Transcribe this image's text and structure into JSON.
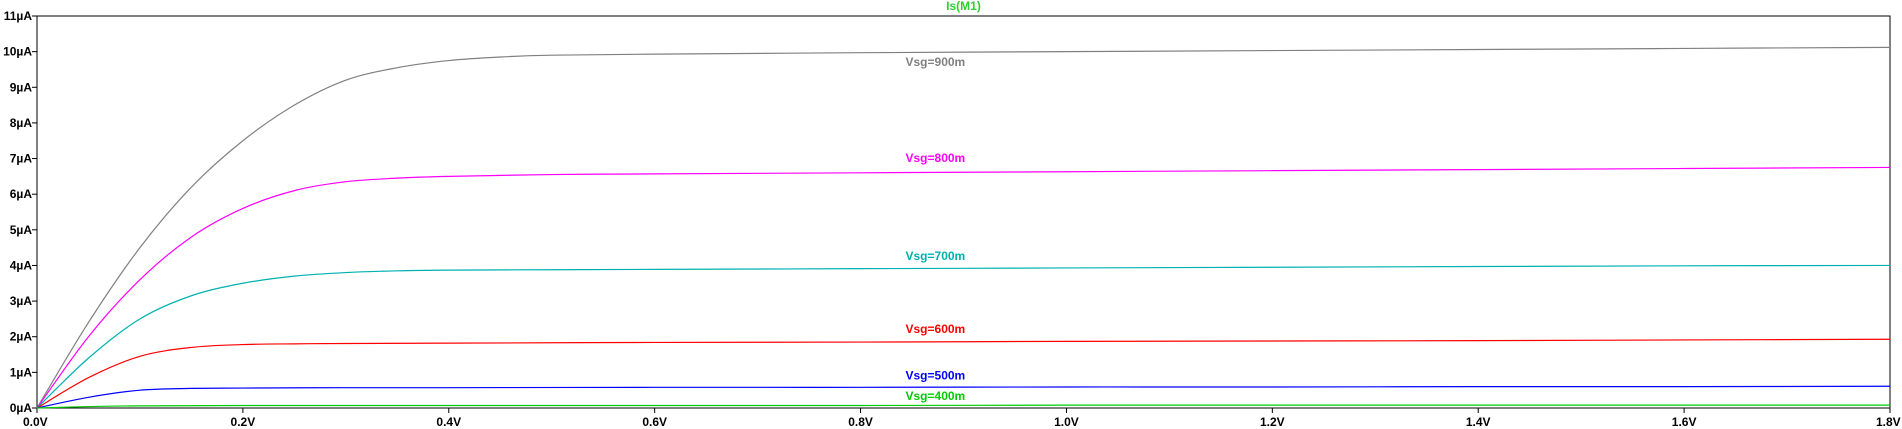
{
  "chart_data": {
    "type": "line",
    "title": "Is(M1)",
    "title_color": "#32cd32",
    "xlabel": "",
    "ylabel": "",
    "xlim": [
      0,
      1.8
    ],
    "ylim": [
      0,
      11
    ],
    "x_unit": "V",
    "y_unit": "µA",
    "grid": false,
    "x_ticks": [
      0,
      0.2,
      0.4,
      0.6,
      0.8,
      1.0,
      1.2,
      1.4,
      1.6,
      1.8
    ],
    "x_tick_labels": [
      "0.0V",
      "0.2V",
      "0.4V",
      "0.6V",
      "0.8V",
      "1.0V",
      "1.2V",
      "1.4V",
      "1.6V",
      "1.8V"
    ],
    "y_ticks": [
      0,
      1,
      2,
      3,
      4,
      5,
      6,
      7,
      8,
      9,
      10,
      11
    ],
    "y_tick_labels": [
      "0µA",
      "1µA",
      "2µA",
      "3µA",
      "4µA",
      "5µA",
      "6µA",
      "7µA",
      "8µA",
      "9µA",
      "10µA",
      "11µA"
    ],
    "series": [
      {
        "name": "Vsg=900m",
        "color": "#808080",
        "x": [
          0,
          0.05,
          0.1,
          0.15,
          0.2,
          0.25,
          0.3,
          0.35,
          0.4,
          0.45,
          0.5,
          0.6,
          0.8,
          1.0,
          1.2,
          1.4,
          1.6,
          1.8
        ],
        "values": [
          0,
          2.4,
          4.5,
          6.2,
          7.5,
          8.5,
          9.2,
          9.55,
          9.75,
          9.85,
          9.9,
          9.93,
          9.97,
          10.0,
          10.03,
          10.06,
          10.09,
          10.12
        ],
        "label_x": 0.9,
        "label_y": 9.6
      },
      {
        "name": "Vsg=800m",
        "color": "#ff00ff",
        "x": [
          0,
          0.05,
          0.1,
          0.15,
          0.2,
          0.25,
          0.3,
          0.35,
          0.4,
          0.5,
          0.6,
          0.8,
          1.0,
          1.2,
          1.4,
          1.6,
          1.8
        ],
        "values": [
          0,
          2.0,
          3.6,
          4.8,
          5.6,
          6.1,
          6.35,
          6.45,
          6.5,
          6.55,
          6.57,
          6.6,
          6.63,
          6.66,
          6.69,
          6.72,
          6.75
        ],
        "label_x": 0.9,
        "label_y": 6.9
      },
      {
        "name": "Vsg=700m",
        "color": "#00b0b0",
        "x": [
          0,
          0.05,
          0.1,
          0.15,
          0.2,
          0.25,
          0.3,
          0.35,
          0.4,
          0.5,
          0.6,
          0.8,
          1.0,
          1.2,
          1.4,
          1.6,
          1.8
        ],
        "values": [
          0,
          1.4,
          2.5,
          3.15,
          3.5,
          3.7,
          3.8,
          3.85,
          3.87,
          3.88,
          3.89,
          3.91,
          3.93,
          3.95,
          3.97,
          3.99,
          4.0
        ],
        "label_x": 0.9,
        "label_y": 4.15
      },
      {
        "name": "Vsg=600m",
        "color": "#ff0000",
        "x": [
          0,
          0.05,
          0.1,
          0.15,
          0.2,
          0.25,
          0.3,
          0.4,
          0.6,
          0.8,
          1.0,
          1.2,
          1.4,
          1.6,
          1.8
        ],
        "values": [
          0,
          0.85,
          1.45,
          1.7,
          1.78,
          1.8,
          1.81,
          1.82,
          1.84,
          1.85,
          1.87,
          1.88,
          1.89,
          1.91,
          1.93
        ],
        "label_x": 0.9,
        "label_y": 2.1
      },
      {
        "name": "Vsg=500m",
        "color": "#0000ff",
        "x": [
          0,
          0.05,
          0.1,
          0.15,
          0.2,
          0.3,
          0.4,
          0.6,
          0.8,
          1.0,
          1.2,
          1.4,
          1.6,
          1.8
        ],
        "values": [
          0,
          0.3,
          0.5,
          0.55,
          0.56,
          0.57,
          0.57,
          0.58,
          0.58,
          0.59,
          0.59,
          0.6,
          0.6,
          0.61
        ],
        "label_x": 0.9,
        "label_y": 0.8
      },
      {
        "name": "Vsg=400m",
        "color": "#00cc00",
        "x": [
          0,
          0.05,
          0.1,
          0.2,
          0.4,
          0.6,
          0.8,
          1.0,
          1.2,
          1.4,
          1.6,
          1.8
        ],
        "values": [
          0,
          0.04,
          0.06,
          0.07,
          0.07,
          0.07,
          0.07,
          0.08,
          0.08,
          0.08,
          0.08,
          0.08
        ],
        "label_x": 0.9,
        "label_y": 0.22
      }
    ]
  }
}
